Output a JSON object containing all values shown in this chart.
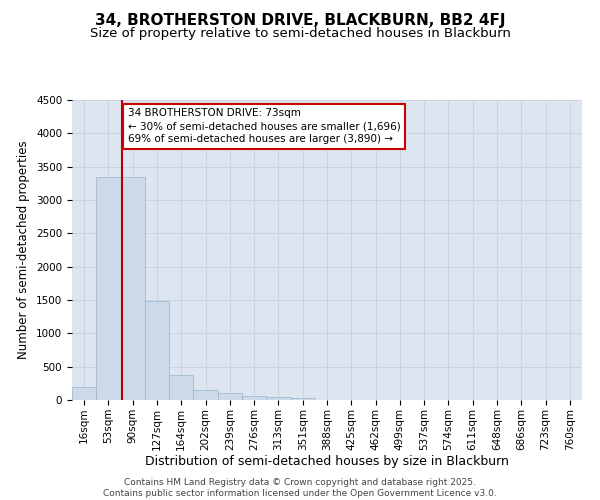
{
  "title1": "34, BROTHERSTON DRIVE, BLACKBURN, BB2 4FJ",
  "title2": "Size of property relative to semi-detached houses in Blackburn",
  "xlabel": "Distribution of semi-detached houses by size in Blackburn",
  "ylabel": "Number of semi-detached properties",
  "footer": "Contains HM Land Registry data © Crown copyright and database right 2025.\nContains public sector information licensed under the Open Government Licence v3.0.",
  "bins": [
    "16sqm",
    "53sqm",
    "90sqm",
    "127sqm",
    "164sqm",
    "202sqm",
    "239sqm",
    "276sqm",
    "313sqm",
    "351sqm",
    "388sqm",
    "425sqm",
    "462sqm",
    "499sqm",
    "537sqm",
    "574sqm",
    "611sqm",
    "648sqm",
    "686sqm",
    "723sqm",
    "760sqm"
  ],
  "values": [
    200,
    3350,
    3350,
    1490,
    370,
    150,
    100,
    62,
    42,
    28,
    4,
    0,
    0,
    0,
    0,
    0,
    0,
    0,
    0,
    0,
    0
  ],
  "bar_color": "#ccd9e8",
  "bar_edge_color": "#99b3cc",
  "grid_color": "#c8d4e0",
  "background_color": "#dde6f0",
  "property_line_color": "#bb0000",
  "annotation_line1": "34 BROTHERSTON DRIVE: 73sqm",
  "annotation_line2": "← 30% of semi-detached houses are smaller (1,696)",
  "annotation_line3": "69% of semi-detached houses are larger (3,890) →",
  "annotation_box_color": "#cc0000",
  "ylim": [
    0,
    4500
  ],
  "yticks": [
    0,
    500,
    1000,
    1500,
    2000,
    2500,
    3000,
    3500,
    4000,
    4500
  ],
  "title1_fontsize": 11,
  "title2_fontsize": 9.5,
  "xlabel_fontsize": 9,
  "ylabel_fontsize": 8.5,
  "tick_fontsize": 7.5,
  "annotation_fontsize": 7.5,
  "footer_fontsize": 6.5
}
